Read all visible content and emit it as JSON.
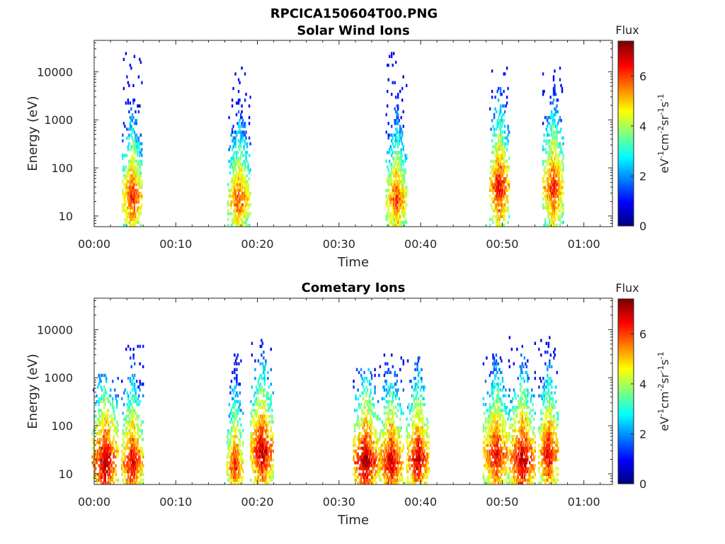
{
  "figure": {
    "title": "RPCICA150604T00.PNG"
  },
  "chart_data": [
    {
      "type": "heatmap",
      "title": "Solar Wind Ions",
      "xlabel": "Time",
      "ylabel": "Energy (eV)",
      "x_ticks": [
        "00:00",
        "00:10",
        "00:20",
        "00:30",
        "00:40",
        "00:50",
        "01:00"
      ],
      "x_tick_values_min": [
        0,
        10,
        20,
        30,
        40,
        50,
        60
      ],
      "xlim_min": [
        0,
        63.5
      ],
      "y_scale": "log",
      "y_ticks": [
        "10",
        "100",
        "1000",
        "10000"
      ],
      "y_tick_values": [
        10,
        100,
        1000,
        10000
      ],
      "ylim": [
        6,
        45000
      ],
      "colorbar": {
        "title": "Flux",
        "label": "eV-1cm-2sr-1s-1",
        "label_parts": [
          {
            "t": "eV",
            "sup": false
          },
          {
            "t": "-1",
            "sup": true
          },
          {
            "t": "cm",
            "sup": false
          },
          {
            "t": "-2",
            "sup": true
          },
          {
            "t": "sr",
            "sup": false
          },
          {
            "t": "-1",
            "sup": true
          },
          {
            "t": "s",
            "sup": false
          },
          {
            "t": "-1",
            "sup": true
          }
        ],
        "ticks": [
          "0",
          "2",
          "4",
          "6"
        ],
        "tick_values": [
          0,
          2,
          4,
          6
        ],
        "range": [
          0,
          7.4
        ],
        "colormap": "jet"
      },
      "bursts": [
        {
          "t": 4.6,
          "w": 1.2,
          "e_low": 6,
          "e_high": 30000,
          "peak_e": 25,
          "peak_flux": 6.5
        },
        {
          "t": 17.7,
          "w": 1.4,
          "e_low": 6,
          "e_high": 14000,
          "peak_e": 22,
          "peak_flux": 6.2
        },
        {
          "t": 37.0,
          "w": 1.3,
          "e_low": 6,
          "e_high": 26000,
          "peak_e": 22,
          "peak_flux": 6.3
        },
        {
          "t": 49.6,
          "w": 1.2,
          "e_low": 6,
          "e_high": 14000,
          "peak_e": 40,
          "peak_flux": 6.8
        },
        {
          "t": 56.2,
          "w": 1.3,
          "e_low": 6,
          "e_high": 13000,
          "peak_e": 40,
          "peak_flux": 6.6
        }
      ]
    },
    {
      "type": "heatmap",
      "title": "Cometary Ions",
      "xlabel": "Time",
      "ylabel": "Energy (eV)",
      "x_ticks": [
        "00:00",
        "00:10",
        "00:20",
        "00:30",
        "00:40",
        "00:50",
        "01:00"
      ],
      "x_tick_values_min": [
        0,
        10,
        20,
        30,
        40,
        50,
        60
      ],
      "xlim_min": [
        0,
        63.5
      ],
      "y_scale": "log",
      "y_ticks": [
        "10",
        "100",
        "1000",
        "10000"
      ],
      "y_tick_values": [
        10,
        100,
        1000,
        10000
      ],
      "ylim": [
        6,
        45000
      ],
      "colorbar": {
        "title": "Flux",
        "label": "eV-1cm-2sr-1s-1",
        "label_parts": [
          {
            "t": "eV",
            "sup": false
          },
          {
            "t": "-1",
            "sup": true
          },
          {
            "t": "cm",
            "sup": false
          },
          {
            "t": "-2",
            "sup": true
          },
          {
            "t": "sr",
            "sup": false
          },
          {
            "t": "-1",
            "sup": true
          },
          {
            "t": "s",
            "sup": false
          },
          {
            "t": "-1",
            "sup": true
          }
        ],
        "ticks": [
          "0",
          "2",
          "4",
          "6"
        ],
        "tick_values": [
          0,
          2,
          4,
          6
        ],
        "range": [
          0,
          7.4
        ],
        "colormap": "jet"
      },
      "bursts": [
        {
          "t": 1.3,
          "w": 1.6,
          "e_low": 6,
          "e_high": 1200,
          "peak_e": 18,
          "peak_flux": 7.2
        },
        {
          "t": 4.6,
          "w": 1.3,
          "e_low": 6,
          "e_high": 5500,
          "peak_e": 18,
          "peak_flux": 6.9
        },
        {
          "t": 17.2,
          "w": 1.0,
          "e_low": 6,
          "e_high": 3000,
          "peak_e": 15,
          "peak_flux": 6.5
        },
        {
          "t": 20.5,
          "w": 1.4,
          "e_low": 6,
          "e_high": 6000,
          "peak_e": 30,
          "peak_flux": 7.1
        },
        {
          "t": 33.2,
          "w": 1.5,
          "e_low": 6,
          "e_high": 1500,
          "peak_e": 18,
          "peak_flux": 7.3
        },
        {
          "t": 36.3,
          "w": 1.5,
          "e_low": 6,
          "e_high": 3000,
          "peak_e": 18,
          "peak_flux": 7.0
        },
        {
          "t": 39.6,
          "w": 1.4,
          "e_low": 6,
          "e_high": 2700,
          "peak_e": 20,
          "peak_flux": 7.0
        },
        {
          "t": 49.2,
          "w": 1.6,
          "e_low": 6,
          "e_high": 3800,
          "peak_e": 25,
          "peak_flux": 6.8
        },
        {
          "t": 52.4,
          "w": 1.6,
          "e_low": 6,
          "e_high": 7000,
          "peak_e": 20,
          "peak_flux": 7.2
        },
        {
          "t": 55.6,
          "w": 1.2,
          "e_low": 6,
          "e_high": 7500,
          "peak_e": 25,
          "peak_flux": 6.9
        }
      ]
    }
  ]
}
